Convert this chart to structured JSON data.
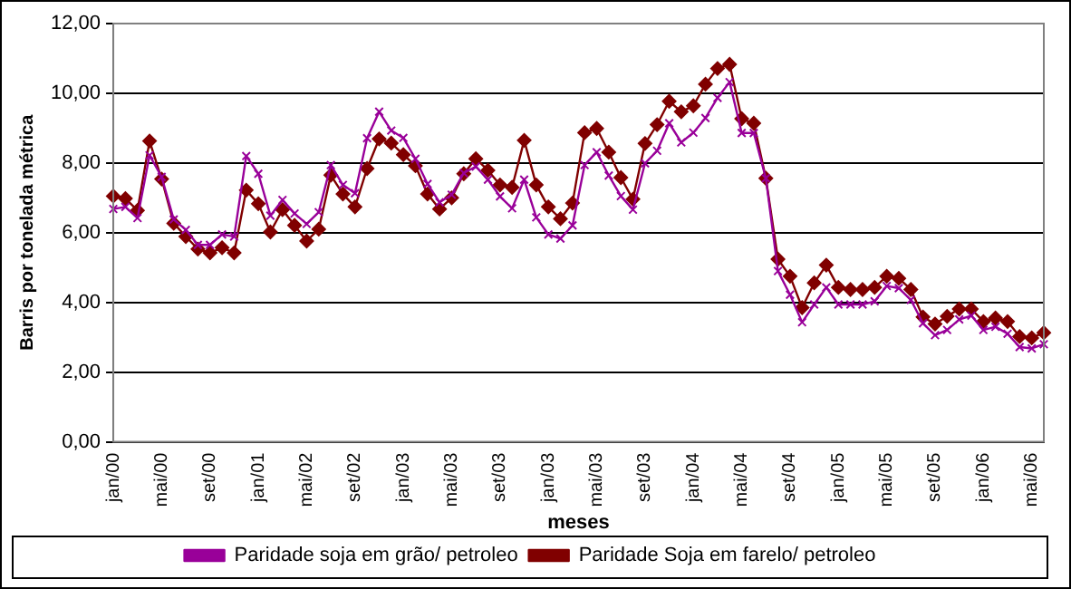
{
  "chart_data": {
    "type": "line",
    "xlabel": "meses",
    "ylabel": "Barris por tonelada métrica",
    "categories": [
      "jan/00",
      null,
      null,
      null,
      "mai/00",
      null,
      null,
      null,
      "set/00",
      null,
      null,
      null,
      "jan/01",
      null,
      null,
      null,
      "mai/02",
      null,
      null,
      null,
      "set/02",
      null,
      null,
      null,
      "jan/03",
      null,
      null,
      null,
      "mai/03",
      null,
      null,
      null,
      "set/03",
      null,
      null,
      null,
      "jan/03",
      null,
      null,
      null,
      "mai/03",
      null,
      null,
      null,
      "set/03",
      null,
      null,
      null,
      "jan/04",
      null,
      null,
      null,
      "mai/04",
      null,
      null,
      null,
      "set/04",
      null,
      null,
      null,
      "jan/05",
      null,
      null,
      null,
      "mai/05",
      null,
      null,
      null,
      "set/05",
      null,
      null,
      null,
      "jan/06",
      null,
      null,
      null,
      "mai/06",
      null
    ],
    "series": [
      {
        "name": "Paridade soja em grão/ petroleo",
        "color": "#990099",
        "marker": "cross",
        "values": [
          6.68,
          6.74,
          6.42,
          8.22,
          7.6,
          6.38,
          6.08,
          5.65,
          5.65,
          5.95,
          5.89,
          8.2,
          7.69,
          6.49,
          6.94,
          6.55,
          6.25,
          6.59,
          7.94,
          7.37,
          7.13,
          8.71,
          9.47,
          8.93,
          8.72,
          8.12,
          7.4,
          6.87,
          7.09,
          7.71,
          7.9,
          7.52,
          7.04,
          6.7,
          7.52,
          6.44,
          5.95,
          5.83,
          6.21,
          7.94,
          8.31,
          7.64,
          7.05,
          6.66,
          7.99,
          8.35,
          9.14,
          8.59,
          8.87,
          9.29,
          9.87,
          10.32,
          8.86,
          8.86,
          7.56,
          4.9,
          4.22,
          3.43,
          3.94,
          4.43,
          3.94,
          3.94,
          3.94,
          4.03,
          4.47,
          4.41,
          4.07,
          3.4,
          3.06,
          3.21,
          3.51,
          3.62,
          3.21,
          3.3,
          3.1,
          2.72,
          2.68,
          2.8
        ]
      },
      {
        "name": "Paridade Soja em farelo/ petroleo",
        "color": "#800000",
        "marker": "diamond",
        "values": [
          7.05,
          6.98,
          6.64,
          8.63,
          7.54,
          6.27,
          5.89,
          5.53,
          5.42,
          5.57,
          5.42,
          7.22,
          6.83,
          6.02,
          6.66,
          6.21,
          5.76,
          6.1,
          7.65,
          7.11,
          6.74,
          7.84,
          8.69,
          8.57,
          8.24,
          7.92,
          7.11,
          6.68,
          7.0,
          7.69,
          8.12,
          7.79,
          7.37,
          7.3,
          8.65,
          7.37,
          6.74,
          6.4,
          6.85,
          8.87,
          8.99,
          8.31,
          7.58,
          6.96,
          8.56,
          9.1,
          9.77,
          9.47,
          9.64,
          10.26,
          10.71,
          10.83,
          9.27,
          9.14,
          7.56,
          5.24,
          4.75,
          3.85,
          4.56,
          5.07,
          4.43,
          4.37,
          4.37,
          4.43,
          4.75,
          4.69,
          4.37,
          3.58,
          3.38,
          3.6,
          3.81,
          3.81,
          3.45,
          3.55,
          3.45,
          3.02,
          2.98,
          3.13
        ]
      }
    ],
    "ylim": [
      0,
      12
    ],
    "yticks": [
      {
        "value": 0,
        "label": "0,00"
      },
      {
        "value": 2,
        "label": "2,00"
      },
      {
        "value": 4,
        "label": "4,00"
      },
      {
        "value": 6,
        "label": "6,00"
      },
      {
        "value": 8,
        "label": "8,00"
      },
      {
        "value": 10,
        "label": "10,00"
      },
      {
        "value": 12,
        "label": "12,00"
      }
    ],
    "grid": "y",
    "legend": "bottom",
    "line_style": "solid"
  }
}
